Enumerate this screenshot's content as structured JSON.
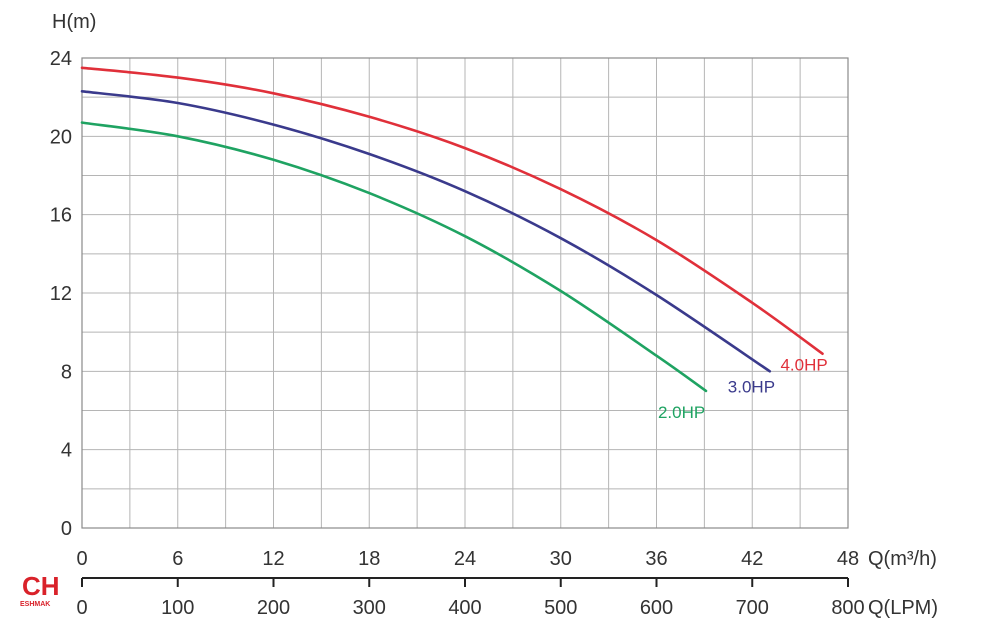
{
  "chart_data": {
    "type": "line",
    "ylabel": "H(m)",
    "xlabel": "Q(m³/h)",
    "x2label": "Q(LPM)",
    "ylim": [
      0,
      24
    ],
    "xlim": [
      0,
      48
    ],
    "x2lim": [
      0,
      800
    ],
    "yticks": [
      "0",
      "4",
      "8",
      "12",
      "16",
      "20",
      "24"
    ],
    "xticks": [
      "0",
      "6",
      "12",
      "18",
      "24",
      "30",
      "36",
      "42",
      "48"
    ],
    "x2ticks": [
      "0",
      "100",
      "200",
      "300",
      "400",
      "500",
      "600",
      "700",
      "800"
    ],
    "grid": true,
    "series": [
      {
        "name": "4.0HP",
        "color": "#e0303a",
        "x": [
          0,
          6,
          12,
          18,
          24,
          30,
          36,
          42,
          46.4
        ],
        "y": [
          23.5,
          23.0,
          22.2,
          21.0,
          19.4,
          17.3,
          14.7,
          11.5,
          8.9
        ]
      },
      {
        "name": "3.0HP",
        "color": "#3a3a8c",
        "x": [
          0,
          6,
          12,
          18,
          24,
          30,
          36,
          43.1
        ],
        "y": [
          22.3,
          21.7,
          20.6,
          19.1,
          17.2,
          14.8,
          11.9,
          8.0
        ]
      },
      {
        "name": "2.0HP",
        "color": "#1fa362",
        "x": [
          0,
          6,
          12,
          18,
          24,
          30,
          36,
          39.1
        ],
        "y": [
          20.7,
          20.0,
          18.8,
          17.1,
          14.9,
          12.1,
          8.8,
          7.0
        ]
      }
    ]
  },
  "logo": {
    "text": "CH",
    "subtext": "ESHMAK",
    "color": "#d9222a"
  }
}
